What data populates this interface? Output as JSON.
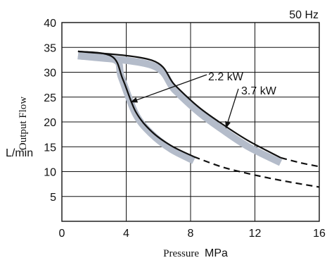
{
  "chart_data": {
    "type": "line",
    "frequency_label": "50 Hz",
    "ylabel": "Output Flow",
    "yunit": "L/min",
    "xlabel": "Pressure",
    "xunit": "MPa",
    "xlim": [
      0,
      16
    ],
    "ylim": [
      0,
      40
    ],
    "xticks": [
      0,
      4,
      8,
      12,
      16
    ],
    "yticks": [
      5,
      10,
      15,
      20,
      25,
      30,
      35,
      40
    ],
    "grid": true,
    "band_color": "#b4bcca",
    "line_color": "#111111",
    "series": [
      {
        "name": "2.2 kW",
        "solid": [
          [
            1,
            34.2
          ],
          [
            3.1,
            33.2
          ],
          [
            3.8,
            28.5
          ],
          [
            4.6,
            22.0
          ],
          [
            5.6,
            18.0
          ],
          [
            6.8,
            15.2
          ],
          [
            8.2,
            13.0
          ]
        ],
        "dashed": [
          [
            8.2,
            13.0
          ],
          [
            10,
            10.9
          ],
          [
            12,
            9.3
          ],
          [
            14,
            8.0
          ],
          [
            16,
            6.9
          ]
        ],
        "band": [
          [
            1,
            33.3
          ],
          [
            3.3,
            32.5
          ],
          [
            3.7,
            29.0
          ],
          [
            4.6,
            21.5
          ],
          [
            5.6,
            17.5
          ],
          [
            6.8,
            14.5
          ],
          [
            8.2,
            12.2
          ]
        ]
      },
      {
        "name": "3.7 kW",
        "solid": [
          [
            1,
            34.2
          ],
          [
            5.6,
            32.4
          ],
          [
            7.0,
            27.5
          ],
          [
            8.5,
            23.0
          ],
          [
            10,
            19.5
          ],
          [
            11.6,
            16.2
          ],
          [
            13.6,
            12.8
          ]
        ],
        "dashed": [
          [
            13.6,
            12.8
          ],
          [
            14.8,
            11.8
          ],
          [
            16,
            11.0
          ]
        ],
        "band": [
          [
            1,
            33.3
          ],
          [
            5.6,
            31.4
          ],
          [
            7.0,
            26.5
          ],
          [
            8.5,
            22.0
          ],
          [
            10,
            18.4
          ],
          [
            11.6,
            15.0
          ],
          [
            13.6,
            11.8
          ]
        ]
      }
    ]
  }
}
